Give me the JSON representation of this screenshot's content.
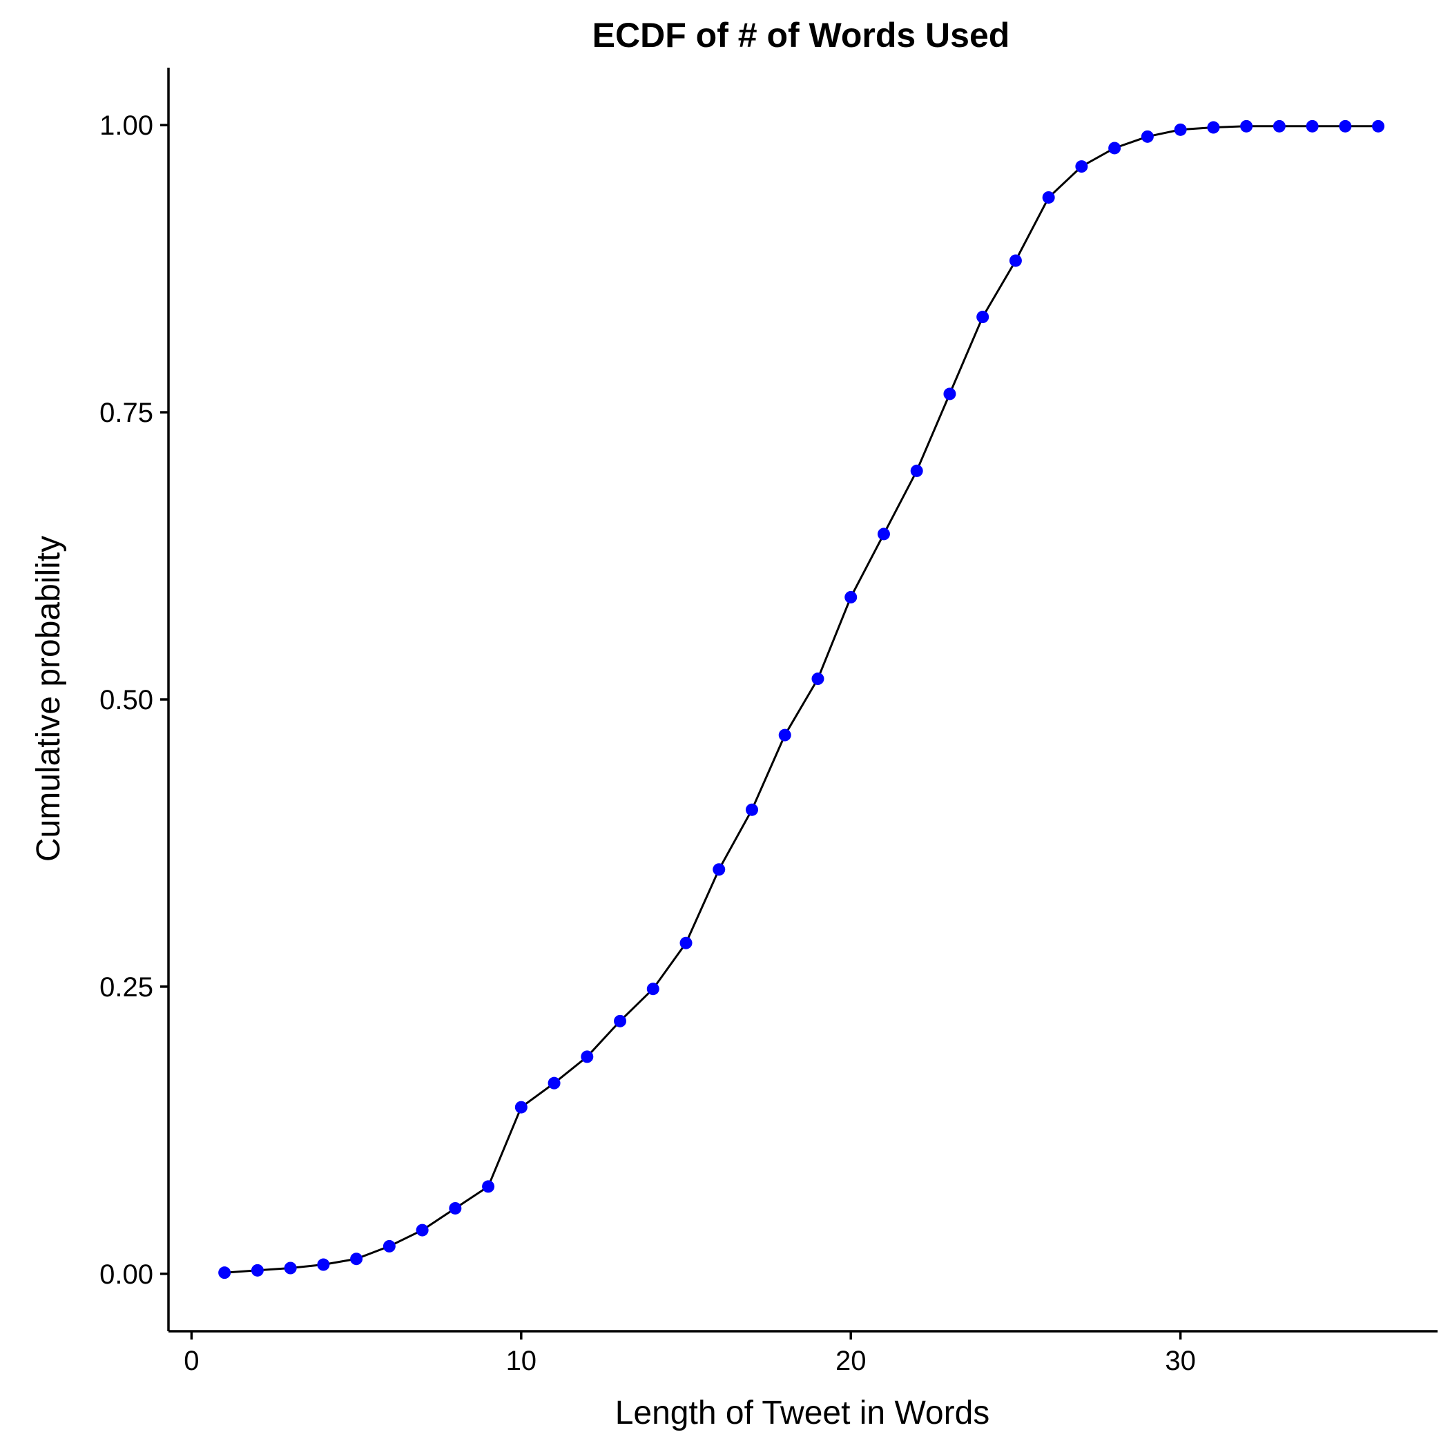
{
  "chart_data": {
    "type": "line",
    "title": "ECDF of # of Words Used",
    "xlabel": "Length of Tweet in Words",
    "ylabel": "Cumulative probability",
    "xlim": [
      -0.7,
      37.8
    ],
    "ylim": [
      -0.05,
      1.05
    ],
    "x_ticks": [
      0,
      10,
      20,
      30
    ],
    "x_tick_labels": [
      "0",
      "10",
      "20",
      "30"
    ],
    "y_ticks": [
      0,
      0.25,
      0.5,
      0.75,
      1
    ],
    "y_tick_labels": [
      "0.00",
      "0.25",
      "0.50",
      "0.75",
      "1.00"
    ],
    "grid": false,
    "line_color": "#000000",
    "point_color": "#0000FF",
    "x": [
      1,
      2,
      3,
      4,
      5,
      6,
      7,
      8,
      9,
      10,
      11,
      12,
      13,
      14,
      15,
      16,
      17,
      18,
      19,
      20,
      21,
      22,
      23,
      24,
      25,
      26,
      27,
      28,
      29,
      30,
      31,
      32,
      33,
      34,
      35,
      36
    ],
    "y": [
      0.001,
      0.003,
      0.005,
      0.008,
      0.013,
      0.024,
      0.038,
      0.057,
      0.076,
      0.145,
      0.166,
      0.189,
      0.22,
      0.248,
      0.288,
      0.352,
      0.404,
      0.469,
      0.518,
      0.589,
      0.644,
      0.699,
      0.766,
      0.833,
      0.882,
      0.937,
      0.964,
      0.98,
      0.99,
      0.996,
      0.998,
      0.999,
      0.999,
      0.999,
      0.999,
      0.999
    ]
  }
}
